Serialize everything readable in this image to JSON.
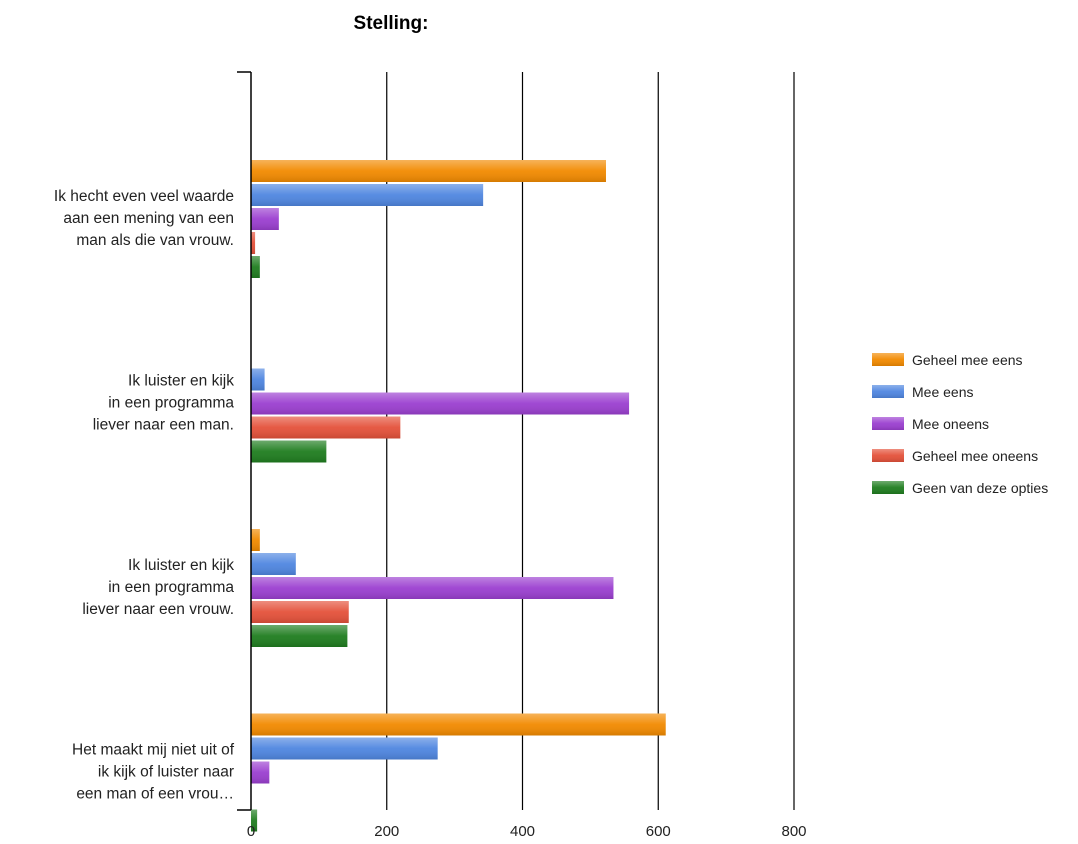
{
  "chart_data": {
    "type": "bar",
    "orientation": "horizontal",
    "title": "Stelling:",
    "categories": [
      [
        "Ik hecht even veel waarde",
        "aan een mening van een",
        "man als die van vrouw."
      ],
      [
        "Ik luister en kijk",
        "in een programma",
        "liever naar een man."
      ],
      [
        "Ik luister en kijk",
        "in een programma",
        "liever naar een vrouw."
      ],
      [
        "Het maakt mij niet uit of",
        "ik kijk of luister naar",
        "een man of een vrou…"
      ]
    ],
    "series": [
      {
        "name": "Geheel mee eens",
        "color": "#f28a00",
        "values": [
          523,
          0,
          13,
          611
        ]
      },
      {
        "name": "Mee eens",
        "color": "#4f86e0",
        "values": [
          342,
          20,
          66,
          275
        ]
      },
      {
        "name": "Mee oneens",
        "color": "#9b3fd0",
        "values": [
          41,
          557,
          534,
          27
        ]
      },
      {
        "name": "Geheel mee oneens",
        "color": "#e4513a",
        "values": [
          6,
          220,
          144,
          0
        ]
      },
      {
        "name": "Geen van deze opties",
        "color": "#1f7d1f",
        "values": [
          13,
          111,
          142,
          9
        ]
      }
    ],
    "xlim": [
      0,
      800
    ],
    "xticks": [
      0,
      200,
      400,
      600,
      800
    ],
    "grid": true,
    "legend": "right"
  }
}
